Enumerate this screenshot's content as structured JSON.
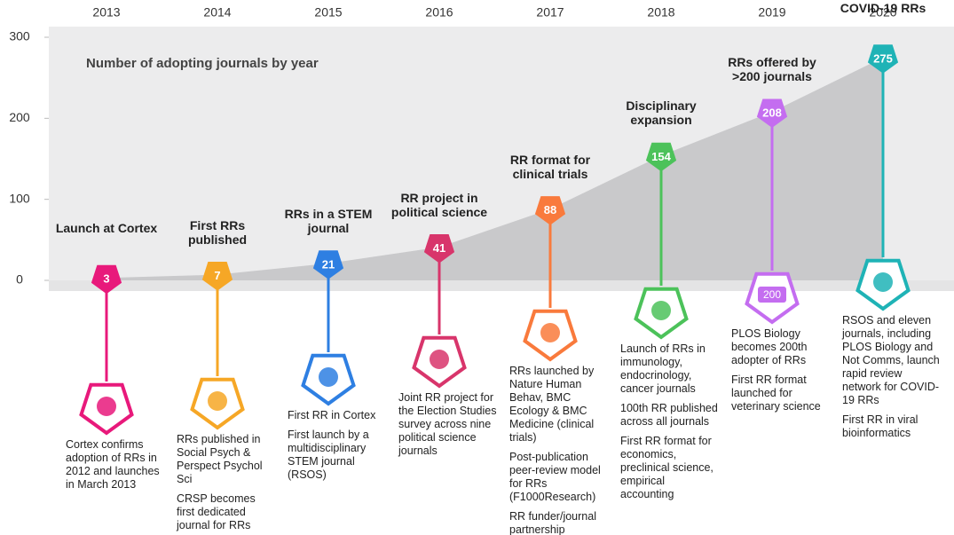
{
  "chart_data": {
    "type": "area",
    "title": "Number of adopting journals by year",
    "categories": [
      "2013",
      "2014",
      "2015",
      "2016",
      "2017",
      "2018",
      "2019",
      "2020"
    ],
    "values": [
      3,
      7,
      21,
      41,
      88,
      154,
      208,
      275
    ],
    "color": "#c9c9cb",
    "ylim": [
      0,
      300
    ],
    "yticks": [
      0,
      100,
      200,
      300
    ],
    "colors": [
      "#e8197b",
      "#f6a726",
      "#2e7fe2",
      "#d8356b",
      "#f97a3c",
      "#4cc25a",
      "#c46df0",
      "#1fb3b6"
    ],
    "milestones": [
      {
        "heading": "Launch at Cortex",
        "text": [
          "Cortex confirms adoption of RRs in 2012 and launches in March 2013"
        ]
      },
      {
        "heading": "First RRs published",
        "text": [
          "RRs published in Social Psych & Perspect Psychol Sci",
          "CRSP becomes first dedicated journal for RRs"
        ]
      },
      {
        "heading": "RRs in a STEM journal",
        "text": [
          "First RR in Cortex",
          "First launch by a multidisciplinary STEM journal (RSOS)"
        ]
      },
      {
        "heading": "RR project in political science",
        "text": [
          "Joint RR project for the Election Studies survey across nine political science journals"
        ]
      },
      {
        "heading": "RR format for clinical trials",
        "text": [
          "RRs launched by Nature Human Behav, BMC Ecology & BMC Medicine (clinical trials)",
          "Post-publication peer-review model for RRs (F1000Research)",
          "RR funder/journal partnership declared"
        ]
      },
      {
        "heading": "Disciplinary expansion",
        "text": [
          "Launch of RRs in immunology, endocrinology, cancer journals",
          "100th RR published across all journals",
          "First RR format for economics, preclinical science, empirical accounting"
        ]
      },
      {
        "heading": "RRs offered by >200 journals",
        "icon_text": "200",
        "text": [
          "PLOS Biology becomes 200th adopter of RRs",
          "First RR format launched for veterinary science"
        ]
      },
      {
        "heading": "COVID-19 RRs",
        "text": [
          "RSOS and eleven journals, including PLOS Biology and Not Comms, launch rapid review network for COVID-19 RRs",
          "First RR in viral bioinformatics"
        ]
      }
    ]
  }
}
